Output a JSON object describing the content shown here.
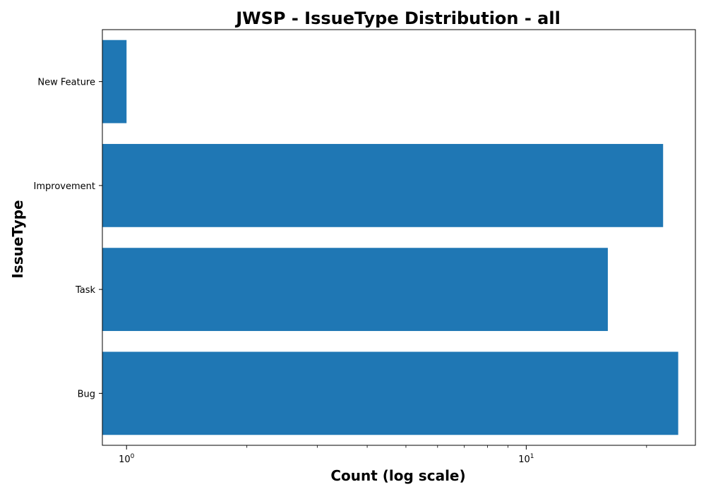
{
  "chart_data": {
    "type": "bar",
    "orientation": "horizontal",
    "title": "JWSP - IssueType Distribution - all",
    "xlabel": "Count (log scale)",
    "ylabel": "IssueType",
    "x_scale": "log",
    "xlim": [
      0.87,
      26.5
    ],
    "categories": [
      "Bug",
      "Task",
      "Improvement",
      "New Feature"
    ],
    "values": [
      24,
      16,
      22,
      1
    ],
    "x_major_ticks": [
      {
        "value": 1,
        "base": "10",
        "exponent": "0"
      },
      {
        "value": 10,
        "base": "10",
        "exponent": "1"
      }
    ],
    "x_minor_ticks": [
      2,
      3,
      4,
      5,
      6,
      7,
      8,
      9,
      20
    ],
    "grid": false,
    "legend": "none",
    "bar_color": "#1f77b4"
  }
}
